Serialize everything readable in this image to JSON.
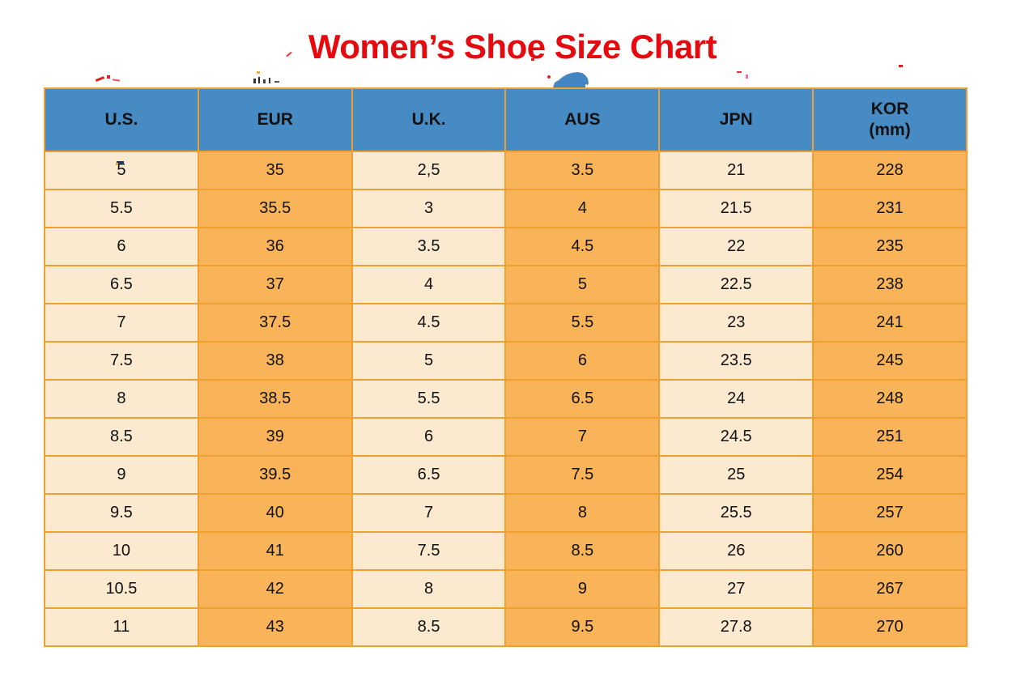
{
  "chart_data": {
    "type": "table",
    "title": "Women’s Shoe Size Chart",
    "columns": [
      {
        "label": "U.S.",
        "sub": ""
      },
      {
        "label": "EUR",
        "sub": ""
      },
      {
        "label": "U.K.",
        "sub": ""
      },
      {
        "label": "AUS",
        "sub": ""
      },
      {
        "label": "JPN",
        "sub": ""
      },
      {
        "label": "KOR",
        "sub": "(mm)"
      }
    ],
    "rows": [
      [
        "5",
        "35",
        "2,5",
        "3.5",
        "21",
        "228"
      ],
      [
        "5.5",
        "35.5",
        "3",
        "4",
        "21.5",
        "231"
      ],
      [
        "6",
        "36",
        "3.5",
        "4.5",
        "22",
        "235"
      ],
      [
        "6.5",
        "37",
        "4",
        "5",
        "22.5",
        "238"
      ],
      [
        "7",
        "37.5",
        "4.5",
        "5.5",
        "23",
        "241"
      ],
      [
        "7.5",
        "38",
        "5",
        "6",
        "23.5",
        "245"
      ],
      [
        "8",
        "38.5",
        "5.5",
        "6.5",
        "24",
        "248"
      ],
      [
        "8.5",
        "39",
        "6",
        "7",
        "24.5",
        "251"
      ],
      [
        "9",
        "39.5",
        "6.5",
        "7.5",
        "25",
        "254"
      ],
      [
        "9.5",
        "40",
        "7",
        "8",
        "25.5",
        "257"
      ],
      [
        "10",
        "41",
        "7.5",
        "8.5",
        "26",
        "260"
      ],
      [
        "10.5",
        "42",
        "8",
        "9",
        "27",
        "267"
      ],
      [
        "11",
        "43",
        "8.5",
        "9.5",
        "27.8",
        "270"
      ]
    ],
    "layout": {
      "grid": "all-borders",
      "header_fill": "#478bc4",
      "column_fills": [
        "#fcead0",
        "#f9b459",
        "#fcead0",
        "#f9b459",
        "#fcead0",
        "#f9b459"
      ],
      "border_color": "#f0a030",
      "title_color": "#e8090f"
    }
  }
}
